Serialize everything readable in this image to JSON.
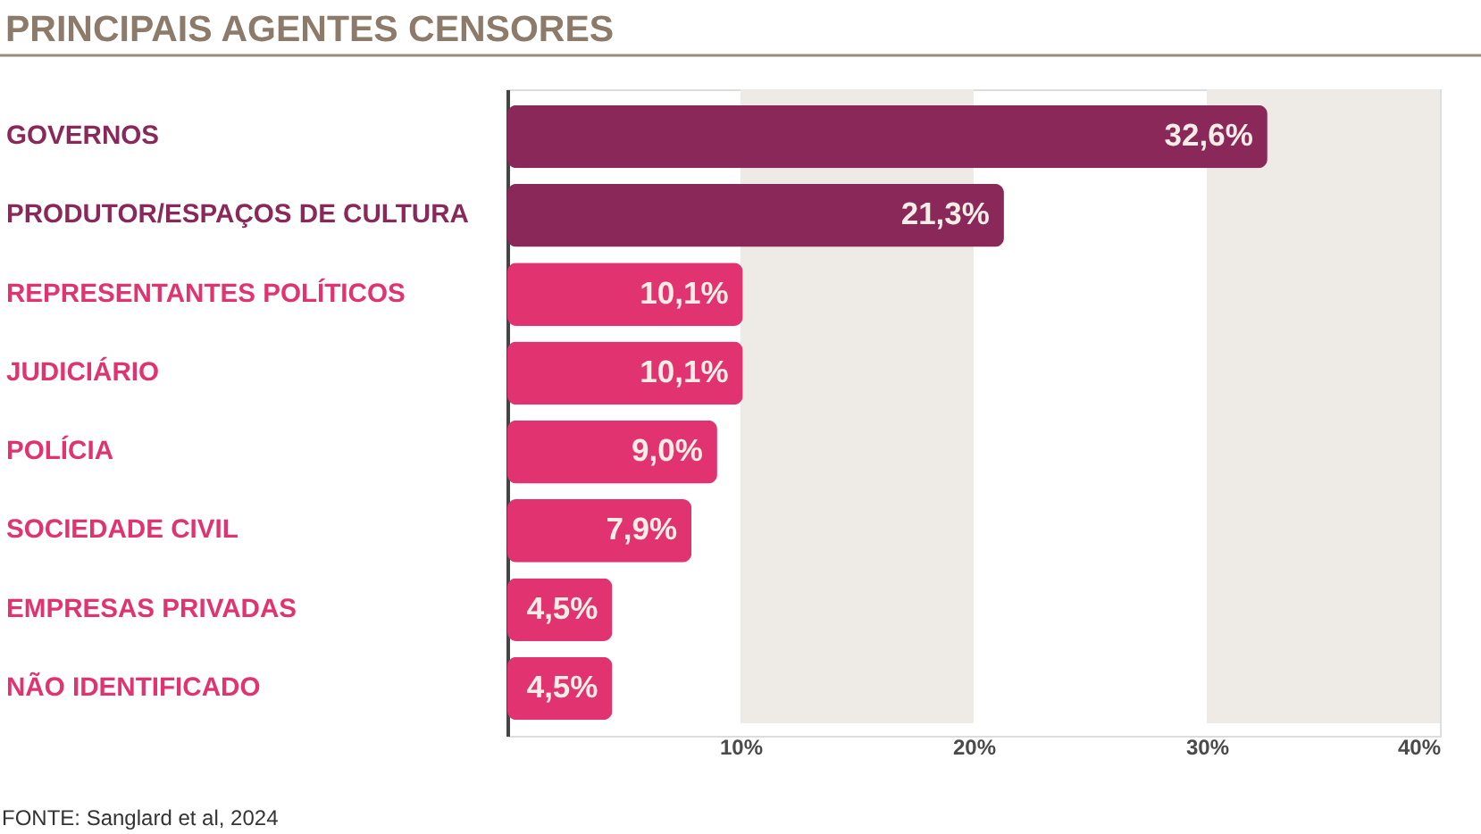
{
  "chart_data": {
    "type": "bar",
    "orientation": "horizontal",
    "title": "PRINCIPAIS AGENTES CENSORES",
    "categories": [
      "GOVERNOS",
      "PRODUTOR/ESPAÇOS DE CULTURA",
      "REPRESENTANTES POLÍTICOS",
      "JUDICIÁRIO",
      "POLÍCIA",
      "SOCIEDADE CIVIL",
      "EMPRESAS PRIVADAS",
      "NÃO IDENTIFICADO"
    ],
    "values": [
      32.6,
      21.3,
      10.1,
      10.1,
      9.0,
      7.9,
      4.5,
      4.5
    ],
    "colors": [
      "#8a2859",
      "#8a2859",
      "#e0336f",
      "#e0336f",
      "#e0336f",
      "#e0336f",
      "#e0336f",
      "#e0336f"
    ],
    "value_labels": [
      "32,6%",
      "21,3%",
      "10,1%",
      "10,1%",
      "9,0%",
      "7,9%",
      "4,5%",
      "4,5%"
    ],
    "xlim": [
      0,
      40
    ],
    "xticks": [
      {
        "value": 10,
        "label": "10%"
      },
      {
        "value": 20,
        "label": "20%"
      },
      {
        "value": 30,
        "label": "30%"
      },
      {
        "value": 40,
        "label": "40%"
      }
    ],
    "bands": [
      {
        "axis": "x",
        "from": 10,
        "to": 20,
        "color": "#eeebe6"
      },
      {
        "axis": "x",
        "from": 30,
        "to": 40,
        "color": "#eeebe6"
      }
    ],
    "annotations": [
      "FONTE: Sanglard et al, 2024"
    ]
  }
}
